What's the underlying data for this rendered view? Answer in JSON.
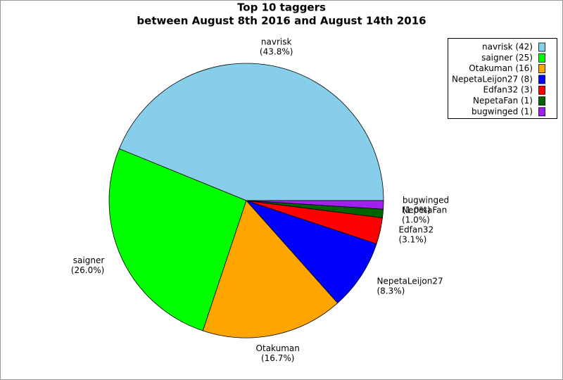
{
  "chart_data": {
    "type": "pie",
    "title": "Top 10 taggers",
    "subtitle": "between August 8th 2016 and August 14th 2016",
    "categories": [
      "navrisk",
      "saigner",
      "Otakuman",
      "NepetaLeijon27",
      "Edfan32",
      "NepetaFan",
      "bugwinged"
    ],
    "values": [
      43.8,
      26.0,
      16.7,
      8.3,
      3.1,
      1.0,
      1.0
    ],
    "value_labels": [
      "(43.8%)",
      "(26.0%)",
      "(16.7%)",
      "(8.3%)",
      "(3.1%)",
      "(1.0%)",
      "(1.0%)"
    ],
    "legend_labels": [
      "navrisk (42)",
      "saigner (25)",
      "Otakuman (16)",
      "NepetaLeijon27 (8)",
      "Edfan32 (3)",
      "NepetaFan (1)",
      "bugwinged (1)"
    ],
    "colors": [
      "#87ceeb",
      "#00ff00",
      "#ffa500",
      "#0000ff",
      "#ff0000",
      "#006400",
      "#a020f0"
    ],
    "legend": "upper right"
  }
}
